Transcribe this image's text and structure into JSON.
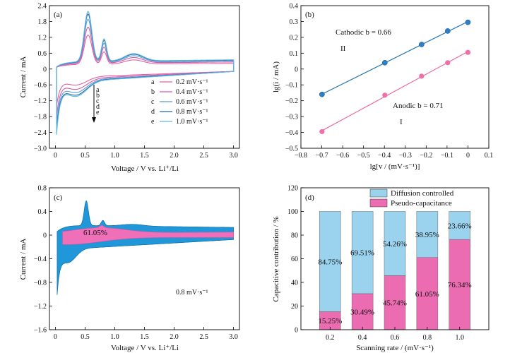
{
  "colors": {
    "a": "#e5609f",
    "b": "#d65aa8",
    "c": "#5a9fd4",
    "d": "#1f6aa8",
    "e": "#5fb8e8",
    "line_b": "#2878b8",
    "marker_b": "#2a7fc6",
    "line_pink": "#ea6aa3",
    "marker_pink": "#ef6fa8",
    "diffusion": "#9bd3ee",
    "pseudo": "#ec6cb1",
    "cv_blue": "#1f97d8",
    "cv_pink": "#ef6fb8"
  },
  "chart_data": [
    {
      "panel": "(a)",
      "type": "line",
      "title": "",
      "xlabel": "Voltage / V vs. Li⁺/Li",
      "ylabel": "Current / mA",
      "xlim": [
        -0.1,
        3.1
      ],
      "ylim": [
        -3.0,
        2.4
      ],
      "xticks": [
        "0",
        "0.5",
        "1.0",
        "1.5",
        "2.0",
        "2.5",
        "3.0"
      ],
      "yticks": [
        "2.4",
        "1.8",
        "1.2",
        "0.6",
        "0",
        "−0.6",
        "−1.2",
        "−1.8",
        "−2.4",
        "−3.0"
      ],
      "arrow_letters": [
        "a",
        "b",
        "c",
        "d",
        "e"
      ],
      "legend": [
        {
          "key": "a",
          "label": "0.2 mV·s⁻¹"
        },
        {
          "key": "b",
          "label": "0.4 mV·s⁻¹"
        },
        {
          "key": "c",
          "label": "0.6 mV·s⁻¹"
        },
        {
          "key": "d",
          "label": "0.8 mV·s⁻¹"
        },
        {
          "key": "e",
          "label": "1.0 mV·s⁻¹"
        }
      ],
      "series": [
        {
          "name": "a",
          "scale": 0.55,
          "anodic_peak": 1.25
        },
        {
          "name": "b",
          "scale": 0.72,
          "anodic_peak": 1.55
        },
        {
          "name": "c",
          "scale": 0.85,
          "anodic_peak": 1.85
        },
        {
          "name": "d",
          "scale": 0.95,
          "anodic_peak": 2.05
        },
        {
          "name": "e",
          "scale": 1.0,
          "anodic_peak": 2.15
        }
      ]
    },
    {
      "panel": "(b)",
      "type": "scatter",
      "xlabel": "lg[v / (mV·s⁻¹)]",
      "ylabel": "lg(i / mA)",
      "xlim": [
        -0.8,
        0.1
      ],
      "ylim": [
        -0.5,
        0.4
      ],
      "xticks": [
        "−0.8",
        "−0.7",
        "−0.6",
        "−0.5",
        "−0.4",
        "−0.3",
        "−0.2",
        "−0.1",
        "0",
        "0.1"
      ],
      "yticks": [
        "0.4",
        "0.3",
        "0.2",
        "0.1",
        "0",
        "−0.1",
        "−0.2",
        "−0.3",
        "−0.4",
        "−0.5"
      ],
      "cathodic_label": "Cathodic b = 0.66",
      "anodic_label": "Anodic b = 0.71",
      "roman_upper": "II",
      "roman_lower": "I",
      "series": [
        {
          "name": "Cathodic",
          "x": [
            -0.699,
            -0.398,
            -0.222,
            -0.097,
            0.0
          ],
          "y": [
            -0.16,
            0.04,
            0.155,
            0.24,
            0.295
          ]
        },
        {
          "name": "Anodic",
          "x": [
            -0.699,
            -0.398,
            -0.222,
            -0.097,
            0.0
          ],
          "y": [
            -0.395,
            -0.165,
            -0.045,
            0.04,
            0.105
          ]
        }
      ]
    },
    {
      "panel": "(c)",
      "type": "area",
      "xlabel": "Voltage / V vs. Li⁺/Li",
      "ylabel": "Current / mA",
      "xlim": [
        -0.1,
        3.1
      ],
      "ylim": [
        -1.6,
        0.8
      ],
      "xticks": [
        "0",
        "0.5",
        "1.0",
        "1.5",
        "2.0",
        "2.5",
        "3.0"
      ],
      "yticks": [
        "0.8",
        "0.4",
        "0",
        "−0.4",
        "−0.8",
        "−1.2",
        "−1.6"
      ],
      "percent_label": "61.05%",
      "rate_label": "0.8 mV·s⁻¹"
    },
    {
      "panel": "(d)",
      "type": "bar",
      "xlabel": "Scanning rate / (mV·s⁻¹)",
      "ylabel": "Capacitive contribution / %",
      "ylim": [
        0,
        120
      ],
      "yticks": [
        "120",
        "100",
        "80",
        "60",
        "40",
        "20",
        "0"
      ],
      "categories": [
        "0.2",
        "0.4",
        "0.6",
        "0.8",
        "1.0"
      ],
      "series": [
        {
          "name": "Pseudo-capacitance",
          "values": [
            15.25,
            30.49,
            45.74,
            61.05,
            76.34
          ]
        },
        {
          "name": "Diffusion controlled",
          "values": [
            84.75,
            69.51,
            54.26,
            38.95,
            23.66
          ]
        }
      ],
      "pseudo_labels": [
        "15.25%",
        "30.49%",
        "45.74%",
        "61.05%",
        "76.34%"
      ],
      "diffusion_labels": [
        "84.75%",
        "69.51%",
        "54.26%",
        "38.95%",
        "23.66%"
      ],
      "legend": [
        "Diffusion controlled",
        "Pseudo-capacitance"
      ]
    }
  ]
}
